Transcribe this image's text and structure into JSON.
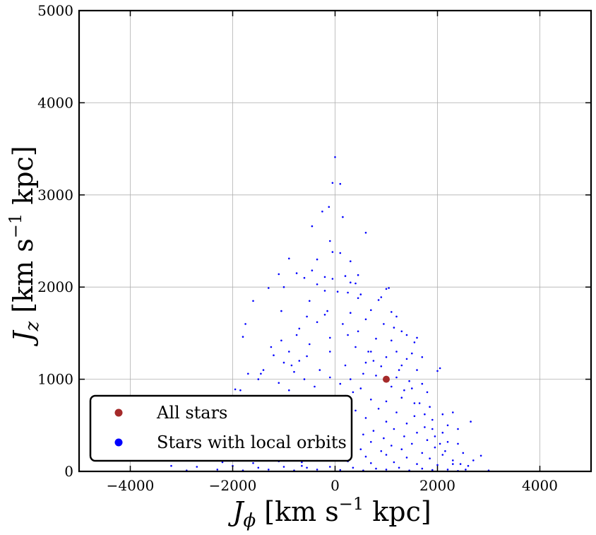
{
  "chart_data": {
    "type": "scatter",
    "title": "",
    "xlabel_parts": {
      "var": "J",
      "sub": "ϕ",
      "unit_pre": "[km s",
      "exp": "−1",
      "unit_post": " kpc]"
    },
    "ylabel_parts": {
      "var": "J",
      "sub": "z",
      "unit_pre": "[km s",
      "exp": "−1",
      "unit_post": " kpc]"
    },
    "xlim": [
      -5000,
      5000
    ],
    "ylim": [
      0,
      5000
    ],
    "x_ticks": [
      -4000,
      -2000,
      0,
      2000,
      4000
    ],
    "x_tick_labels": [
      "−4000",
      "−2000",
      "0",
      "2000",
      "4000"
    ],
    "y_ticks": [
      0,
      1000,
      2000,
      3000,
      4000,
      5000
    ],
    "y_tick_labels": [
      "0",
      "1000",
      "2000",
      "3000",
      "4000",
      "5000"
    ],
    "grid": true,
    "legend_position": "lower-left",
    "series": [
      {
        "name": "Stars with local orbits",
        "color": "#0000ff",
        "points": [
          [
            0,
            3410
          ],
          [
            -50,
            3130
          ],
          [
            100,
            3120
          ],
          [
            -120,
            2870
          ],
          [
            150,
            2760
          ],
          [
            -250,
            2820
          ],
          [
            -450,
            2660
          ],
          [
            600,
            2590
          ],
          [
            -100,
            2500
          ],
          [
            -50,
            2380
          ],
          [
            100,
            2370
          ],
          [
            -900,
            2310
          ],
          [
            -1100,
            2140
          ],
          [
            -750,
            2150
          ],
          [
            -450,
            2180
          ],
          [
            -200,
            2110
          ],
          [
            -50,
            2090
          ],
          [
            200,
            2120
          ],
          [
            450,
            2130
          ],
          [
            -1300,
            1990
          ],
          [
            -1000,
            2000
          ],
          [
            -350,
            2030
          ],
          [
            300,
            2050
          ],
          [
            400,
            2040
          ],
          [
            1000,
            1980
          ],
          [
            1050,
            1990
          ],
          [
            -1600,
            1850
          ],
          [
            -200,
            1960
          ],
          [
            50,
            1950
          ],
          [
            250,
            1940
          ],
          [
            500,
            1920
          ],
          [
            900,
            1890
          ],
          [
            -1050,
            1740
          ],
          [
            -550,
            1680
          ],
          [
            -200,
            1700
          ],
          [
            300,
            1720
          ],
          [
            700,
            1750
          ],
          [
            1100,
            1730
          ],
          [
            -1800,
            1460
          ],
          [
            -700,
            1550
          ],
          [
            -350,
            1620
          ],
          [
            150,
            1600
          ],
          [
            600,
            1650
          ],
          [
            1300,
            1520
          ],
          [
            1400,
            1480
          ],
          [
            1600,
            1450
          ],
          [
            -1200,
            1260
          ],
          [
            -900,
            1300
          ],
          [
            -500,
            1380
          ],
          [
            -100,
            1450
          ],
          [
            250,
            1480
          ],
          [
            800,
            1440
          ],
          [
            1100,
            1420
          ],
          [
            1550,
            1400
          ],
          [
            -1400,
            1100
          ],
          [
            -1000,
            1180
          ],
          [
            -700,
            1200
          ],
          [
            -100,
            1300
          ],
          [
            400,
            1350
          ],
          [
            700,
            1300
          ],
          [
            1200,
            1300
          ],
          [
            1500,
            1280
          ],
          [
            2050,
            1120
          ],
          [
            2000,
            1090
          ],
          [
            -1450,
            1060
          ],
          [
            -800,
            1080
          ],
          [
            -300,
            1100
          ],
          [
            200,
            1150
          ],
          [
            600,
            1180
          ],
          [
            900,
            1140
          ],
          [
            1300,
            1150
          ],
          [
            1600,
            1100
          ],
          [
            -1950,
            890
          ],
          [
            -1850,
            880
          ],
          [
            -1100,
            960
          ],
          [
            -600,
            1000
          ],
          [
            -100,
            1020
          ],
          [
            300,
            1000
          ],
          [
            800,
            1040
          ],
          [
            1200,
            1020
          ],
          [
            1450,
            980
          ],
          [
            1700,
            950
          ],
          [
            -1500,
            780
          ],
          [
            -1200,
            800
          ],
          [
            -900,
            880
          ],
          [
            -400,
            920
          ],
          [
            100,
            950
          ],
          [
            500,
            900
          ],
          [
            1100,
            920
          ],
          [
            1500,
            900
          ],
          [
            1800,
            860
          ],
          [
            -1700,
            700
          ],
          [
            -1300,
            720
          ],
          [
            -800,
            760
          ],
          [
            -300,
            800
          ],
          [
            200,
            820
          ],
          [
            700,
            780
          ],
          [
            1000,
            760
          ],
          [
            1300,
            800
          ],
          [
            1650,
            740
          ],
          [
            2100,
            620
          ],
          [
            2300,
            640
          ],
          [
            2650,
            540
          ],
          [
            -1600,
            620
          ],
          [
            -1100,
            650
          ],
          [
            -600,
            680
          ],
          [
            -100,
            700
          ],
          [
            400,
            660
          ],
          [
            850,
            680
          ],
          [
            1200,
            640
          ],
          [
            1550,
            600
          ],
          [
            1900,
            560
          ],
          [
            2200,
            500
          ],
          [
            -1850,
            540
          ],
          [
            -1400,
            560
          ],
          [
            -900,
            580
          ],
          [
            -400,
            600
          ],
          [
            150,
            560
          ],
          [
            600,
            580
          ],
          [
            1000,
            540
          ],
          [
            1400,
            520
          ],
          [
            1750,
            480
          ],
          [
            2100,
            420
          ],
          [
            -1500,
            450
          ],
          [
            -1000,
            480
          ],
          [
            -600,
            500
          ],
          [
            -200,
            460
          ],
          [
            300,
            480
          ],
          [
            750,
            440
          ],
          [
            1150,
            460
          ],
          [
            1600,
            420
          ],
          [
            1950,
            380
          ],
          [
            2400,
            300
          ],
          [
            -1300,
            380
          ],
          [
            -800,
            400
          ],
          [
            -350,
            420
          ],
          [
            100,
            380
          ],
          [
            550,
            400
          ],
          [
            950,
            360
          ],
          [
            1350,
            380
          ],
          [
            1800,
            340
          ],
          [
            2200,
            320
          ],
          [
            -1600,
            320
          ],
          [
            -1100,
            300
          ],
          [
            -700,
            320
          ],
          [
            -200,
            340
          ],
          [
            250,
            300
          ],
          [
            700,
            320
          ],
          [
            1100,
            280
          ],
          [
            1500,
            300
          ],
          [
            1950,
            260
          ],
          [
            2500,
            200
          ],
          [
            2850,
            170
          ],
          [
            -1400,
            240
          ],
          [
            -900,
            260
          ],
          [
            -450,
            250
          ],
          [
            50,
            260
          ],
          [
            500,
            240
          ],
          [
            900,
            220
          ],
          [
            1300,
            240
          ],
          [
            1700,
            200
          ],
          [
            2100,
            180
          ],
          [
            -1750,
            180
          ],
          [
            -1200,
            160
          ],
          [
            -750,
            180
          ],
          [
            -300,
            170
          ],
          [
            150,
            190
          ],
          [
            600,
            160
          ],
          [
            1000,
            180
          ],
          [
            1400,
            150
          ],
          [
            1850,
            140
          ],
          [
            2300,
            120
          ],
          [
            -2200,
            100
          ],
          [
            -1600,
            90
          ],
          [
            -1100,
            110
          ],
          [
            -650,
            100
          ],
          [
            -200,
            120
          ],
          [
            250,
            110
          ],
          [
            700,
            90
          ],
          [
            1150,
            100
          ],
          [
            1600,
            80
          ],
          [
            2000,
            70
          ],
          [
            2600,
            60
          ],
          [
            -3200,
            60
          ],
          [
            -2700,
            50
          ],
          [
            -2000,
            60
          ],
          [
            -1500,
            40
          ],
          [
            -1000,
            50
          ],
          [
            -550,
            40
          ],
          [
            -100,
            50
          ],
          [
            350,
            40
          ],
          [
            800,
            30
          ],
          [
            1250,
            40
          ],
          [
            1700,
            30
          ],
          [
            2200,
            20
          ],
          [
            3000,
            10
          ],
          [
            -2900,
            10
          ],
          [
            -2300,
            20
          ],
          [
            -1800,
            10
          ],
          [
            -1300,
            20
          ],
          [
            -800,
            10
          ],
          [
            -350,
            20
          ],
          [
            100,
            15
          ],
          [
            550,
            10
          ],
          [
            1000,
            20
          ],
          [
            1450,
            10
          ],
          [
            1900,
            15
          ],
          [
            2400,
            5
          ],
          [
            -1900,
            260
          ],
          [
            -1300,
            520
          ],
          [
            -1500,
            1000
          ],
          [
            -1700,
            1060
          ],
          [
            -1250,
            1350
          ],
          [
            -1050,
            1420
          ],
          [
            -750,
            1480
          ],
          [
            -150,
            1740
          ],
          [
            450,
            1880
          ],
          [
            850,
            1860
          ],
          [
            1200,
            1680
          ],
          [
            1400,
            1220
          ],
          [
            1700,
            1240
          ],
          [
            1850,
            700
          ],
          [
            2400,
            460
          ],
          [
            2300,
            80
          ],
          [
            2700,
            120
          ],
          [
            -1750,
            1600
          ],
          [
            -500,
            1850
          ],
          [
            -600,
            2100
          ],
          [
            300,
            2280
          ],
          [
            -350,
            2300
          ],
          [
            950,
            1600
          ],
          [
            1150,
            1560
          ],
          [
            1250,
            1100
          ],
          [
            1000,
            1240
          ],
          [
            750,
            1200
          ],
          [
            550,
            1060
          ],
          [
            350,
            860
          ],
          [
            150,
            720
          ],
          [
            -50,
            560
          ],
          [
            -250,
            380
          ],
          [
            -450,
            200
          ],
          [
            -650,
            60
          ],
          [
            650,
            1300
          ],
          [
            450,
            1520
          ],
          [
            -850,
            1150
          ],
          [
            -550,
            1250
          ],
          [
            1350,
            880
          ],
          [
            1550,
            740
          ],
          [
            1750,
            620
          ],
          [
            1900,
            460
          ],
          [
            2050,
            300
          ],
          [
            2150,
            220
          ],
          [
            2450,
            80
          ],
          [
            2550,
            20
          ]
        ]
      },
      {
        "name": "All stars",
        "color": "#a52a2a",
        "points": [
          [
            1000,
            1000
          ]
        ]
      }
    ]
  }
}
